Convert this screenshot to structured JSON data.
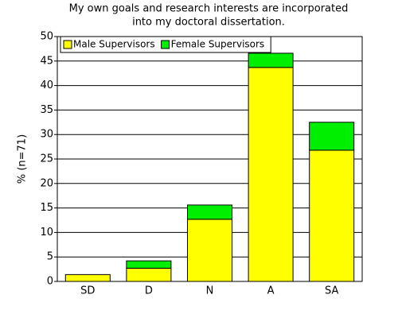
{
  "chart_data": {
    "type": "stacked_bar",
    "title": [
      "My own goals and research interests are incorporated",
      "into my doctoral dissertation."
    ],
    "y_label": "% (n=71)",
    "categories": [
      "SD",
      "D",
      "N",
      "A",
      "SA"
    ],
    "series": [
      {
        "name": "Male Supervisors",
        "color": "#ffff00",
        "values": [
          1.4,
          2.7,
          12.7,
          43.7,
          26.8
        ]
      },
      {
        "name": "Female Supervisors",
        "color": "#00ee00",
        "values": [
          0,
          1.5,
          2.9,
          2.9,
          5.7
        ]
      }
    ],
    "ylim": [
      0,
      50
    ],
    "yticks": [
      0,
      5,
      10,
      15,
      20,
      25,
      30,
      35,
      40,
      45,
      50
    ],
    "grid": true,
    "legend": "top-left"
  }
}
